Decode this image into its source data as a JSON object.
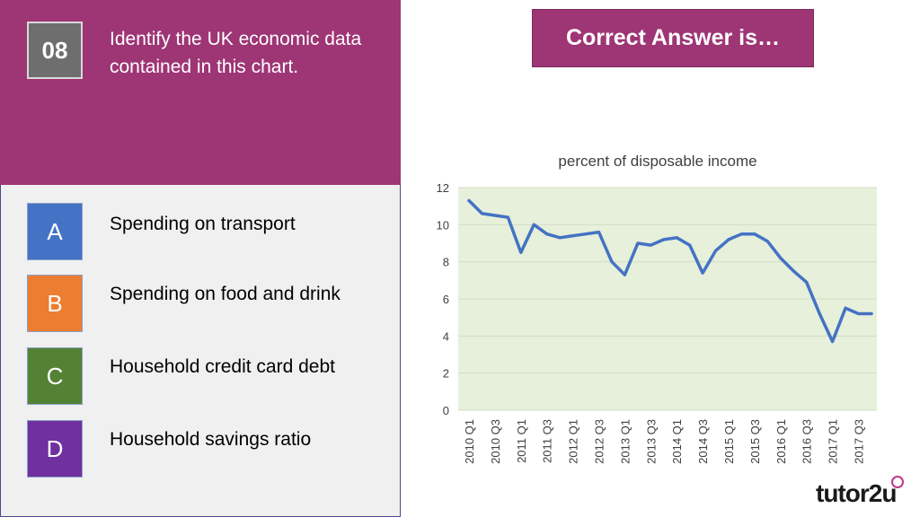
{
  "question": {
    "number": "08",
    "text": "Identify the UK economic data contained in this chart."
  },
  "options": [
    {
      "letter": "A",
      "label": "Spending on transport",
      "color": "#4472c4"
    },
    {
      "letter": "B",
      "label": "Spending on food and drink",
      "color": "#ed7d31"
    },
    {
      "letter": "C",
      "label": "Household credit card debt",
      "color": "#548235"
    },
    {
      "letter": "D",
      "label": "Household savings ratio",
      "color": "#7030a0"
    }
  ],
  "answer_button": "Correct Answer is…",
  "brand": "tutor2u",
  "chart_data": {
    "type": "line",
    "title": "percent of disposable income",
    "ylim": [
      0,
      12
    ],
    "yticks": [
      0,
      2,
      4,
      6,
      8,
      10,
      12
    ],
    "x_tick_labels": [
      "2010 Q1",
      "2010 Q3",
      "2011 Q1",
      "2011 Q3",
      "2012 Q1",
      "2012 Q3",
      "2013 Q1",
      "2013 Q3",
      "2014 Q1",
      "2014 Q3",
      "2015 Q1",
      "2015 Q3",
      "2016 Q1",
      "2016 Q3",
      "2017 Q1",
      "2017 Q3"
    ],
    "x": [
      "2010 Q1",
      "2010 Q2",
      "2010 Q3",
      "2010 Q4",
      "2011 Q1",
      "2011 Q2",
      "2011 Q3",
      "2011 Q4",
      "2012 Q1",
      "2012 Q2",
      "2012 Q3",
      "2012 Q4",
      "2013 Q1",
      "2013 Q2",
      "2013 Q3",
      "2013 Q4",
      "2014 Q1",
      "2014 Q2",
      "2014 Q3",
      "2014 Q4",
      "2015 Q1",
      "2015 Q2",
      "2015 Q3",
      "2015 Q4",
      "2016 Q1",
      "2016 Q2",
      "2016 Q3",
      "2016 Q4",
      "2017 Q1",
      "2017 Q2",
      "2017 Q3",
      "2017 Q4"
    ],
    "values": [
      11.3,
      10.6,
      10.5,
      10.4,
      8.5,
      10.0,
      9.5,
      9.3,
      9.4,
      9.5,
      9.6,
      8.0,
      7.3,
      9.0,
      8.9,
      9.2,
      9.3,
      8.9,
      7.4,
      8.6,
      9.2,
      9.5,
      9.5,
      9.1,
      8.2,
      7.5,
      6.9,
      5.2,
      3.7,
      5.5,
      5.2,
      5.2
    ],
    "plot_background": "#e6f0da",
    "line_color": "#4472c4",
    "grid": true
  }
}
